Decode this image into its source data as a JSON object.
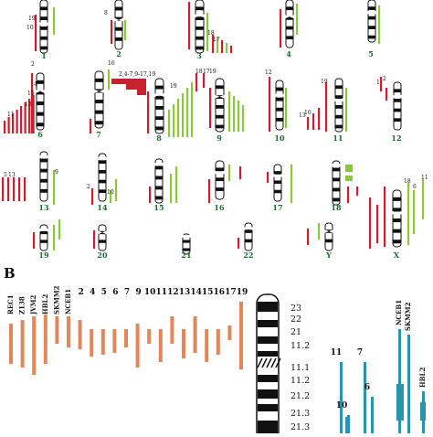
{
  "colors": {
    "red": "#c8202e",
    "green": "#8dc63f",
    "orange": "#e0875c",
    "teal": "#2b93ac",
    "chrom_label": "#1b6b2e",
    "black": "#111111"
  },
  "panel_b_label": "B",
  "chromosomes": [
    {
      "label": "1"
    },
    {
      "label": "2"
    },
    {
      "label": "3"
    },
    {
      "label": "4"
    },
    {
      "label": "5"
    },
    {
      "label": "6"
    },
    {
      "label": "7"
    },
    {
      "label": "8"
    },
    {
      "label": "9"
    },
    {
      "label": "10"
    },
    {
      "label": "11"
    },
    {
      "label": "12"
    },
    {
      "label": "13"
    },
    {
      "label": "14"
    },
    {
      "label": "15"
    },
    {
      "label": "16"
    },
    {
      "label": "17"
    },
    {
      "label": "18"
    },
    {
      "label": "19"
    },
    {
      "label": "20"
    },
    {
      "label": "21"
    },
    {
      "label": "22"
    },
    {
      "label": "Y"
    },
    {
      "label": "X"
    }
  ],
  "annotations_a": [
    "19",
    "10",
    "8",
    "18",
    "17",
    "2",
    "4",
    "11",
    "15",
    "13",
    "16",
    "2,4-7,9-17,19",
    "19",
    "18",
    "17",
    "19",
    "12",
    "13",
    "10",
    "19",
    "1",
    "2",
    "5",
    "13",
    "9",
    "2",
    "10",
    "18",
    "6",
    "11",
    "19",
    "12",
    "2",
    "5",
    "9",
    "4",
    "17",
    "2",
    "13",
    "4",
    "6",
    "7",
    "11",
    "16",
    "2",
    "11",
    "7",
    "12",
    "10",
    "19",
    "22",
    "13",
    "7",
    "16",
    "5",
    "10",
    "8",
    "9"
  ],
  "panel_b": {
    "lines_top": [
      "REC1",
      "Z138",
      "JVM2",
      "HBL2",
      "SKMM2",
      "NCEB1",
      "2",
      "4",
      "5",
      "6",
      "7",
      "9",
      "10",
      "11",
      "12",
      "13",
      "14",
      "15",
      "16",
      "17",
      "19"
    ],
    "bands": [
      "23",
      "22",
      "21",
      "11.2",
      "11.1",
      "11.2",
      "21.2",
      "21.3",
      "21.3"
    ],
    "right_lines": [
      "11",
      "7",
      "6",
      "10",
      "NCEB1",
      "SKMM2",
      "HBL2"
    ]
  }
}
